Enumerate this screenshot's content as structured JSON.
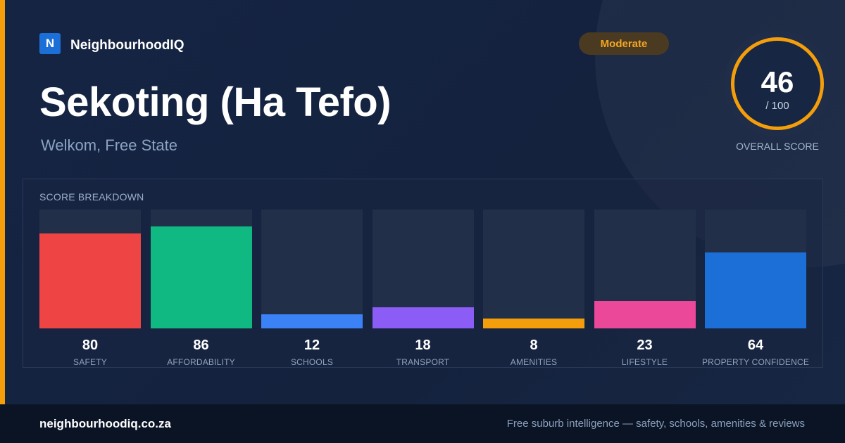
{
  "brand": {
    "logo_letter": "N",
    "name": "NeighbourhoodIQ"
  },
  "badge": {
    "label": "Moderate"
  },
  "suburb": {
    "name": "Sekoting (Ha Tefo)",
    "location": "Welkom, Free State"
  },
  "overall": {
    "score": "46",
    "max": "/ 100",
    "label": "OVERALL SCORE"
  },
  "breakdown": {
    "title": "SCORE BREAKDOWN",
    "max": 100,
    "items": [
      {
        "label": "SAFETY",
        "value": 80,
        "color": "#ef4444"
      },
      {
        "label": "AFFORDABILITY",
        "value": 86,
        "color": "#10b981"
      },
      {
        "label": "SCHOOLS",
        "value": 12,
        "color": "#3b82f6"
      },
      {
        "label": "TRANSPORT",
        "value": 18,
        "color": "#8b5cf6"
      },
      {
        "label": "AMENITIES",
        "value": 8,
        "color": "#f59e0b"
      },
      {
        "label": "LIFESTYLE",
        "value": 23,
        "color": "#ec4899"
      },
      {
        "label": "PROPERTY CONFIDENCE",
        "value": 64,
        "color": "#1d6fd8"
      }
    ]
  },
  "footer": {
    "domain": "neighbourhoodiq.co.za",
    "tagline": "Free suburb intelligence — safety, schools, amenities & reviews"
  },
  "colors": {
    "accent": "#f59e0b",
    "brand_blue": "#1d6fd8",
    "badge_bg": "#4a3a22",
    "badge_text": "#f5a623"
  }
}
